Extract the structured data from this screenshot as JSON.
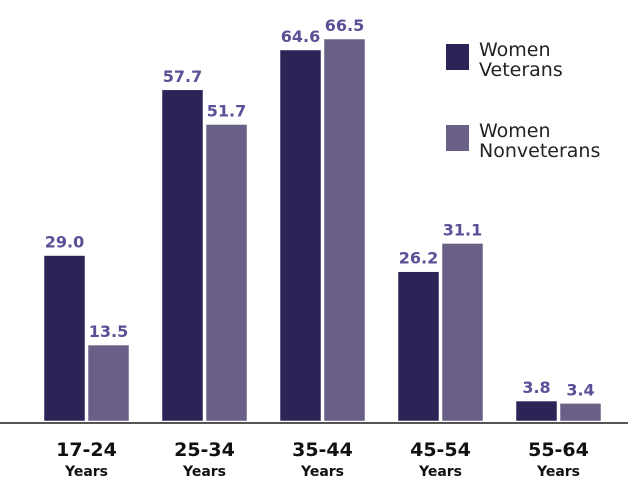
{
  "chart_data": {
    "type": "bar",
    "categories": [
      "17-24",
      "25-34",
      "35-44",
      "45-54",
      "55-64"
    ],
    "category_sublabel": "Years",
    "series": [
      {
        "name": "Women Veterans",
        "legend_lines": [
          "Women",
          "Veterans"
        ],
        "color": "#2c2356",
        "values": [
          29.0,
          57.7,
          64.6,
          26.2,
          3.8
        ]
      },
      {
        "name": "Women Nonveterans",
        "legend_lines": [
          "Women",
          "Nonveterans"
        ],
        "color": "#6a5f86",
        "values": [
          13.5,
          51.7,
          66.5,
          31.1,
          3.4
        ]
      }
    ],
    "ylim": [
      0,
      66.5
    ],
    "title": "",
    "xlabel": "",
    "ylabel": "",
    "grid": false,
    "legend_position": "top-right",
    "value_label_color": "#5b4f96"
  }
}
